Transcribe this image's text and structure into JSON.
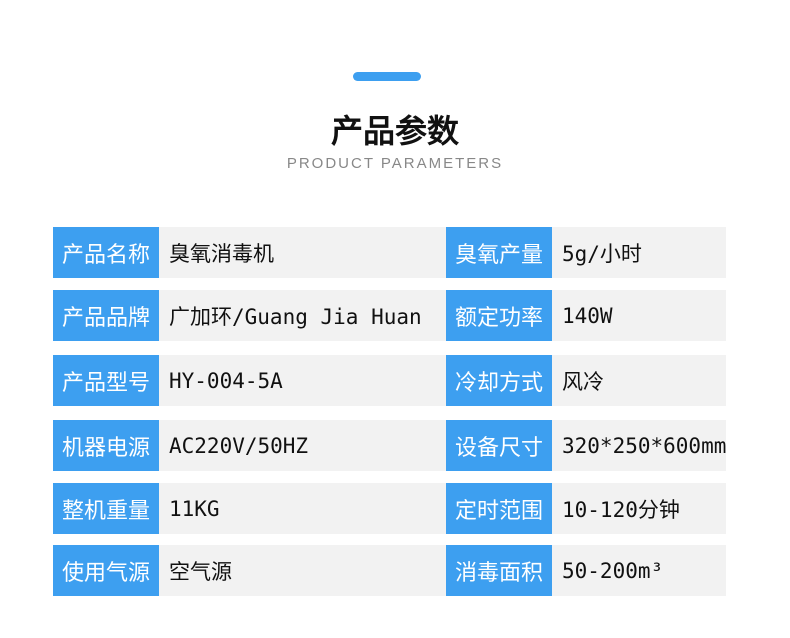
{
  "header": {
    "title": "产品参数",
    "subtitle": "PRODUCT PARAMETERS",
    "accent": "#3d9ff0"
  },
  "rows": [
    {
      "l1": "产品名称",
      "v1": "臭氧消毒机",
      "l2": "臭氧产量",
      "v2": "5g/小时"
    },
    {
      "l1": "产品品牌",
      "v1": "广加环/Guang Jia Huan",
      "l2": "额定功率",
      "v2": "140W"
    },
    {
      "l1": "产品型号",
      "v1": "HY-004-5A",
      "l2": "冷却方式",
      "v2": "风冷"
    },
    {
      "l1": "机器电源",
      "v1": "AC220V/50HZ",
      "l2": "设备尺寸",
      "v2": "320*250*600mm"
    },
    {
      "l1": "整机重量",
      "v1": "11KG",
      "l2": "定时范围",
      "v2": "10-120分钟"
    },
    {
      "l1": "使用气源",
      "v1": "空气源",
      "l2": "消毒面积",
      "v2": "50-200m³"
    }
  ]
}
